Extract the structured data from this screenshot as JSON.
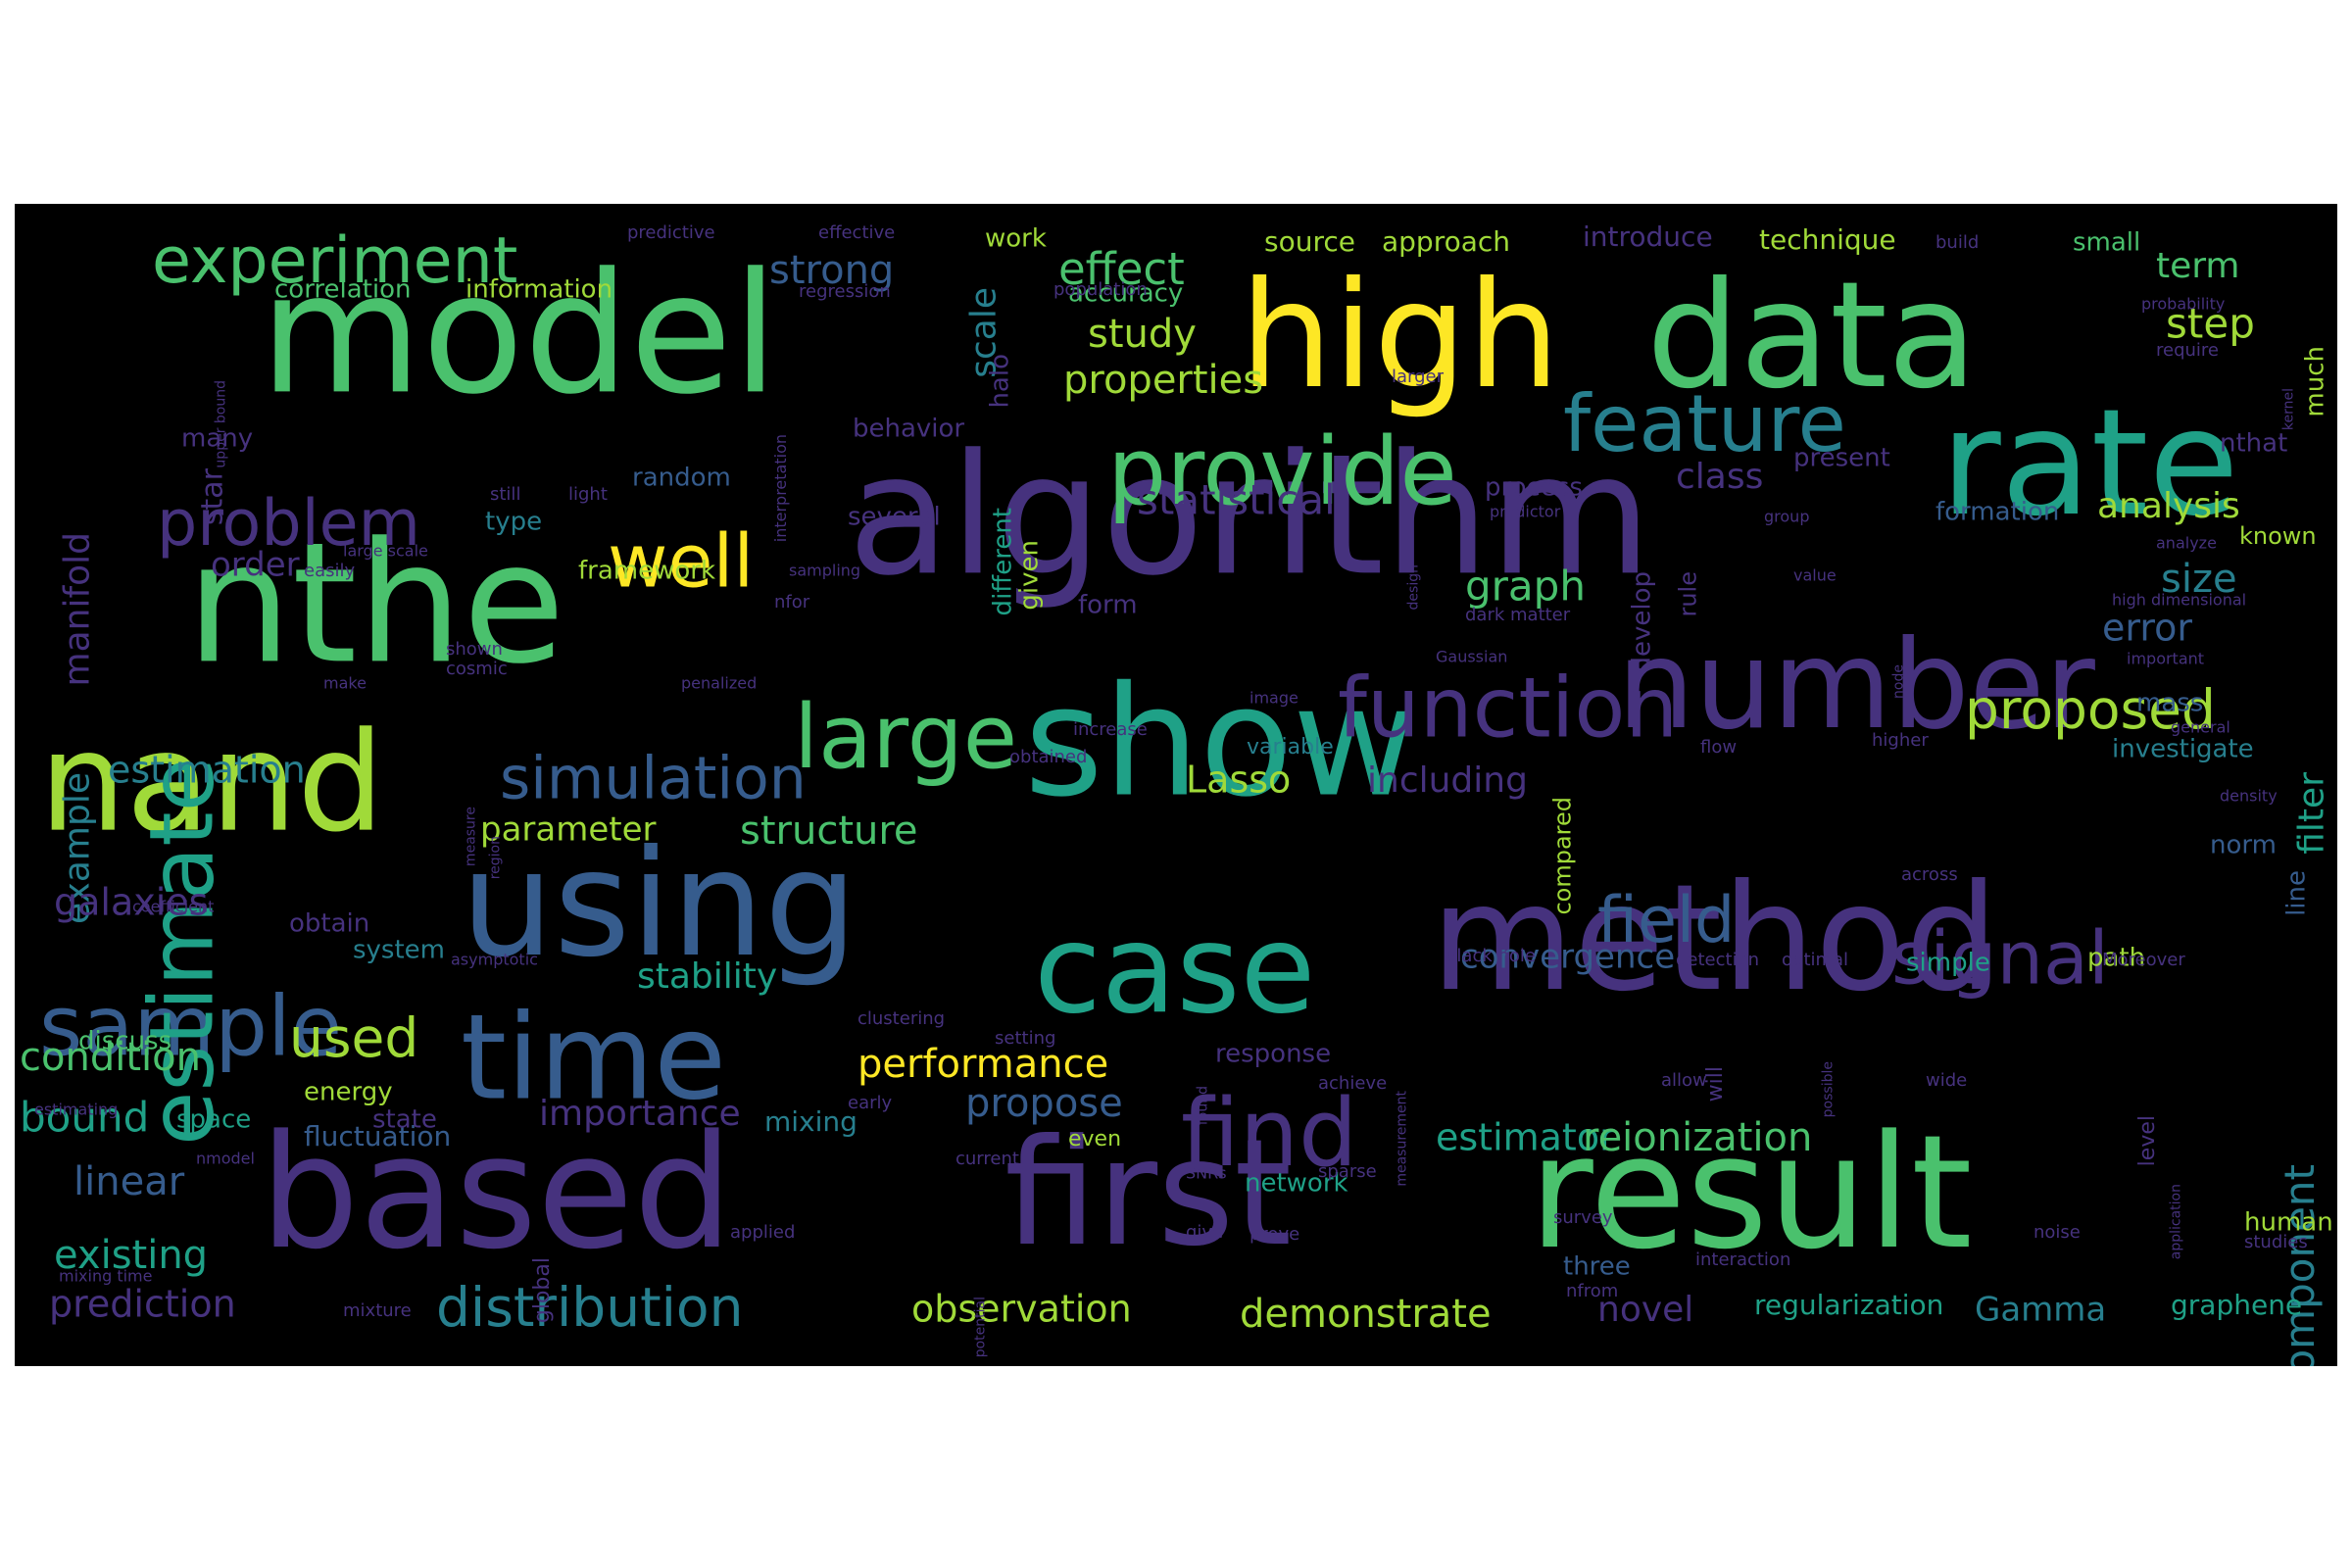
{
  "colors": {
    "background": "#000000",
    "palette": [
      "#440154",
      "#46327e",
      "#365c8d",
      "#277f8e",
      "#1fa187",
      "#4ac16d",
      "#a0da39",
      "#fde725"
    ]
  },
  "words": [
    {
      "text": "model",
      "color": "#4ac16d"
    },
    {
      "text": "high",
      "color": "#fde725"
    },
    {
      "text": "data",
      "color": "#4ac16d"
    },
    {
      "text": "algorithm",
      "color": "#46327e"
    },
    {
      "text": "nthe",
      "color": "#4ac16d"
    },
    {
      "text": "rate",
      "color": "#1fa187"
    },
    {
      "text": "show",
      "color": "#1fa187"
    },
    {
      "text": "number",
      "color": "#46327e"
    },
    {
      "text": "method",
      "color": "#46327e"
    },
    {
      "text": "based",
      "color": "#46327e"
    },
    {
      "text": "result",
      "color": "#4ac16d"
    },
    {
      "text": "first",
      "color": "#46327e"
    },
    {
      "text": "using",
      "color": "#365c8d"
    },
    {
      "text": "nand",
      "color": "#a0da39"
    },
    {
      "text": "time",
      "color": "#365c8d"
    },
    {
      "text": "case",
      "color": "#1fa187"
    },
    {
      "text": "sample",
      "color": "#365c8d"
    },
    {
      "text": "estimate",
      "color": "#1fa187"
    },
    {
      "text": "provide",
      "color": "#4ac16d"
    },
    {
      "text": "feature",
      "color": "#277f8e"
    },
    {
      "text": "function",
      "color": "#46327e"
    },
    {
      "text": "large",
      "color": "#4ac16d"
    },
    {
      "text": "find",
      "color": "#46327e"
    },
    {
      "text": "experiment",
      "color": "#4ac16d"
    },
    {
      "text": "problem",
      "color": "#46327e"
    },
    {
      "text": "well",
      "color": "#fde725"
    },
    {
      "text": "signal",
      "color": "#46327e"
    },
    {
      "text": "simulation",
      "color": "#365c8d"
    },
    {
      "text": "field",
      "color": "#365c8d"
    },
    {
      "text": "proposed",
      "color": "#a0da39"
    },
    {
      "text": "distribution",
      "color": "#277f8e"
    },
    {
      "text": "component",
      "color": "#277f8e"
    },
    {
      "text": "strong",
      "color": "#365c8d"
    },
    {
      "text": "effect",
      "color": "#4ac16d"
    },
    {
      "text": "study",
      "color": "#a0da39"
    },
    {
      "text": "properties",
      "color": "#a0da39"
    },
    {
      "text": "statistical",
      "color": "#46327e"
    },
    {
      "text": "analysis",
      "color": "#a0da39"
    },
    {
      "text": "graph",
      "color": "#4ac16d"
    },
    {
      "text": "size",
      "color": "#277f8e"
    },
    {
      "text": "error",
      "color": "#365c8d"
    },
    {
      "text": "step",
      "color": "#a0da39"
    },
    {
      "text": "term",
      "color": "#4ac16d"
    },
    {
      "text": "manifold",
      "color": "#46327e"
    },
    {
      "text": "example",
      "color": "#277f8e"
    },
    {
      "text": "estimation",
      "color": "#277f8e"
    },
    {
      "text": "galaxies",
      "color": "#46327e"
    },
    {
      "text": "condition",
      "color": "#4ac16d"
    },
    {
      "text": "used",
      "color": "#a0da39"
    },
    {
      "text": "bound",
      "color": "#1fa187"
    },
    {
      "text": "linear",
      "color": "#365c8d"
    },
    {
      "text": "existing",
      "color": "#1fa187"
    },
    {
      "text": "prediction",
      "color": "#46327e"
    },
    {
      "text": "parameter",
      "color": "#a0da39"
    },
    {
      "text": "structure",
      "color": "#4ac16d"
    },
    {
      "text": "stability",
      "color": "#1fa187"
    },
    {
      "text": "performance",
      "color": "#fde725"
    },
    {
      "text": "propose",
      "color": "#365c8d"
    },
    {
      "text": "importance",
      "color": "#46327e"
    },
    {
      "text": "observation",
      "color": "#a0da39"
    },
    {
      "text": "demonstrate",
      "color": "#a0da39"
    },
    {
      "text": "estimator",
      "color": "#1fa187"
    },
    {
      "text": "reionization",
      "color": "#4ac16d"
    },
    {
      "text": "Lasso",
      "color": "#a0da39"
    },
    {
      "text": "including",
      "color": "#46327e"
    },
    {
      "text": "convergence",
      "color": "#365c8d"
    },
    {
      "text": "novel",
      "color": "#46327e"
    },
    {
      "text": "regularization",
      "color": "#1fa187"
    },
    {
      "text": "Gamma",
      "color": "#277f8e"
    },
    {
      "text": "graphene",
      "color": "#1fa187"
    },
    {
      "text": "scale",
      "color": "#277f8e"
    },
    {
      "text": "star",
      "color": "#46327e"
    },
    {
      "text": "order",
      "color": "#46327e"
    },
    {
      "text": "class",
      "color": "#46327e"
    },
    {
      "text": "filter",
      "color": "#1fa187"
    },
    {
      "text": "investigate",
      "color": "#277f8e"
    },
    {
      "text": "mass",
      "color": "#365c8d"
    },
    {
      "text": "norm",
      "color": "#365c8d"
    },
    {
      "text": "line",
      "color": "#365c8d"
    },
    {
      "text": "path",
      "color": "#a0da39"
    },
    {
      "text": "simple",
      "color": "#1fa187"
    },
    {
      "text": "human",
      "color": "#a0da39"
    },
    {
      "text": "three",
      "color": "#365c8d"
    },
    {
      "text": "network",
      "color": "#1fa187"
    },
    {
      "text": "response",
      "color": "#46327e"
    },
    {
      "text": "fluctuation",
      "color": "#365c8d"
    },
    {
      "text": "mixing",
      "color": "#277f8e"
    },
    {
      "text": "space",
      "color": "#1fa187"
    },
    {
      "text": "energy",
      "color": "#a0da39"
    },
    {
      "text": "discuss",
      "color": "#4ac16d"
    },
    {
      "text": "obtain",
      "color": "#46327e"
    },
    {
      "text": "system",
      "color": "#277f8e"
    },
    {
      "text": "framework",
      "color": "#a0da39"
    },
    {
      "text": "random",
      "color": "#365c8d"
    },
    {
      "text": "type",
      "color": "#277f8e"
    },
    {
      "text": "many",
      "color": "#46327e"
    },
    {
      "text": "correlation",
      "color": "#4ac16d"
    },
    {
      "text": "information",
      "color": "#a0da39"
    },
    {
      "text": "approach",
      "color": "#a0da39"
    },
    {
      "text": "source",
      "color": "#a0da39"
    },
    {
      "text": "introduce",
      "color": "#46327e"
    },
    {
      "text": "technique",
      "color": "#a0da39"
    },
    {
      "text": "small",
      "color": "#4ac16d"
    },
    {
      "text": "accuracy",
      "color": "#4ac16d"
    },
    {
      "text": "work",
      "color": "#a0da39"
    },
    {
      "text": "process",
      "color": "#46327e"
    },
    {
      "text": "formation",
      "color": "#365c8d"
    },
    {
      "text": "several",
      "color": "#46327e"
    },
    {
      "text": "behavior",
      "color": "#46327e"
    },
    {
      "text": "present",
      "color": "#46327e"
    },
    {
      "text": "known",
      "color": "#a0da39"
    },
    {
      "text": "nthat",
      "color": "#46327e"
    },
    {
      "text": "much",
      "color": "#a0da39"
    },
    {
      "text": "different",
      "color": "#1fa187"
    },
    {
      "text": "given",
      "color": "#a0da39"
    },
    {
      "text": "develop",
      "color": "#46327e"
    },
    {
      "text": "rule",
      "color": "#46327e"
    },
    {
      "text": "form",
      "color": "#46327e"
    },
    {
      "text": "compared",
      "color": "#a0da39"
    },
    {
      "text": "will",
      "color": "#46327e"
    },
    {
      "text": "level",
      "color": "#46327e"
    },
    {
      "text": "even",
      "color": "#a0da39"
    },
    {
      "text": "variable",
      "color": "#277f8e"
    },
    {
      "text": "halo",
      "color": "#46327e"
    },
    {
      "text": "predictive",
      "color": "#46327e"
    },
    {
      "text": "effective",
      "color": "#46327e"
    },
    {
      "text": "regression",
      "color": "#46327e"
    },
    {
      "text": "population",
      "color": "#46327e"
    },
    {
      "text": "build",
      "color": "#46327e"
    },
    {
      "text": "probability",
      "color": "#46327e"
    },
    {
      "text": "require",
      "color": "#46327e"
    },
    {
      "text": "interpretation",
      "color": "#46327e"
    },
    {
      "text": "upper bound",
      "color": "#46327e"
    },
    {
      "text": "larger",
      "color": "#46327e"
    },
    {
      "text": "kernel",
      "color": "#46327e"
    },
    {
      "text": "still",
      "color": "#46327e"
    },
    {
      "text": "light",
      "color": "#46327e"
    },
    {
      "text": "large scale",
      "color": "#46327e"
    },
    {
      "text": "predictor",
      "color": "#46327e"
    },
    {
      "text": "group",
      "color": "#46327e"
    },
    {
      "text": "analyze",
      "color": "#46327e"
    },
    {
      "text": "easily",
      "color": "#46327e"
    },
    {
      "text": "sampling",
      "color": "#46327e"
    },
    {
      "text": "nfor",
      "color": "#46327e"
    },
    {
      "text": "design",
      "color": "#46327e"
    },
    {
      "text": "value",
      "color": "#46327e"
    },
    {
      "text": "dark matter",
      "color": "#46327e"
    },
    {
      "text": "high dimensional",
      "color": "#46327e"
    },
    {
      "text": "Gaussian",
      "color": "#46327e"
    },
    {
      "text": "important",
      "color": "#46327e"
    },
    {
      "text": "node",
      "color": "#46327e"
    },
    {
      "text": "shown",
      "color": "#46327e"
    },
    {
      "text": "cosmic",
      "color": "#46327e"
    },
    {
      "text": "make",
      "color": "#46327e"
    },
    {
      "text": "penalized",
      "color": "#46327e"
    },
    {
      "text": "image",
      "color": "#46327e"
    },
    {
      "text": "increase",
      "color": "#46327e"
    },
    {
      "text": "higher",
      "color": "#46327e"
    },
    {
      "text": "general",
      "color": "#46327e"
    },
    {
      "text": "flow",
      "color": "#46327e"
    },
    {
      "text": "obtained",
      "color": "#46327e"
    },
    {
      "text": "measure",
      "color": "#46327e"
    },
    {
      "text": "density",
      "color": "#46327e"
    },
    {
      "text": "region",
      "color": "#46327e"
    },
    {
      "text": "across",
      "color": "#46327e"
    },
    {
      "text": "coefficient",
      "color": "#46327e"
    },
    {
      "text": "asymptotic",
      "color": "#46327e"
    },
    {
      "text": "clustering",
      "color": "#46327e"
    },
    {
      "text": "measurement",
      "color": "#46327e"
    },
    {
      "text": "found",
      "color": "#46327e"
    },
    {
      "text": "black hole",
      "color": "#46327e"
    },
    {
      "text": "detection",
      "color": "#46327e"
    },
    {
      "text": "optimal",
      "color": "#46327e"
    },
    {
      "text": "Moreover",
      "color": "#46327e"
    },
    {
      "text": "setting",
      "color": "#46327e"
    },
    {
      "text": "achieve",
      "color": "#46327e"
    },
    {
      "text": "allow",
      "color": "#46327e"
    },
    {
      "text": "possible",
      "color": "#46327e"
    },
    {
      "text": "wide",
      "color": "#46327e"
    },
    {
      "text": "early",
      "color": "#46327e"
    },
    {
      "text": "estimating",
      "color": "#46327e"
    },
    {
      "text": "state",
      "color": "#46327e"
    },
    {
      "text": "nmodel",
      "color": "#46327e"
    },
    {
      "text": "current",
      "color": "#46327e"
    },
    {
      "text": "SNRs",
      "color": "#46327e"
    },
    {
      "text": "sparse",
      "color": "#46327e"
    },
    {
      "text": "application",
      "color": "#46327e"
    },
    {
      "text": "global",
      "color": "#46327e"
    },
    {
      "text": "applied",
      "color": "#46327e"
    },
    {
      "text": "give",
      "color": "#46327e"
    },
    {
      "text": "prove",
      "color": "#46327e"
    },
    {
      "text": "survey",
      "color": "#46327e"
    },
    {
      "text": "noise",
      "color": "#46327e"
    },
    {
      "text": "studies",
      "color": "#46327e"
    },
    {
      "text": "mixing time",
      "color": "#46327e"
    },
    {
      "text": "potential",
      "color": "#46327e"
    },
    {
      "text": "interaction",
      "color": "#46327e"
    },
    {
      "text": "nfrom",
      "color": "#46327e"
    },
    {
      "text": "mixture",
      "color": "#46327e"
    }
  ]
}
